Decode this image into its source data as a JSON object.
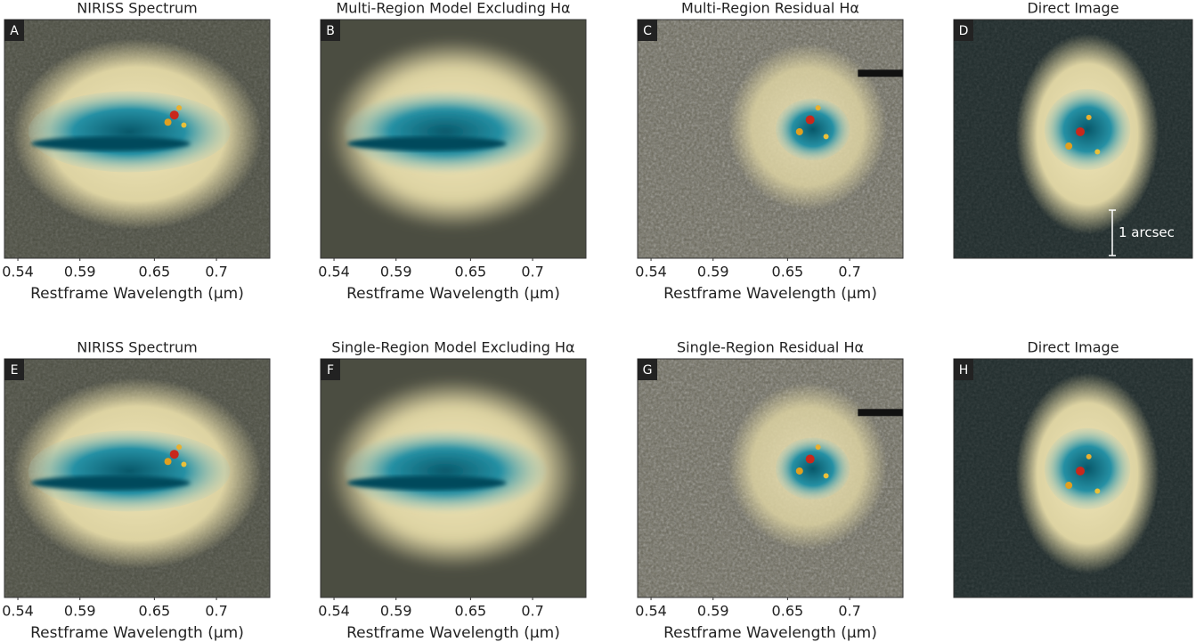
{
  "chart_data": [
    {
      "type": "spectrum",
      "title": "NIRISS Spectrum",
      "panel_label": "A",
      "xlabel": "Restframe Wavelength (μm)",
      "xlim": [
        0.5292,
        0.743
      ],
      "xticks": [
        0.54,
        0.59,
        0.65,
        0.7
      ]
    },
    {
      "type": "model",
      "title": "Multi-Region Model Excluding Hα",
      "panel_label": "B",
      "xlabel": "Restframe Wavelength (μm)",
      "xlim": [
        0.5292,
        0.743
      ],
      "xticks": [
        0.54,
        0.59,
        0.65,
        0.7
      ]
    },
    {
      "type": "residual",
      "title": "Multi-Region Residual Hα",
      "panel_label": "C",
      "xlabel": "Restframe Wavelength (μm)",
      "xlim": [
        0.5292,
        0.743
      ],
      "xticks": [
        0.54,
        0.59,
        0.65,
        0.7
      ]
    },
    {
      "type": "image",
      "title": "Direct Image",
      "panel_label": "D",
      "annotation": "1 arcsec"
    },
    {
      "type": "spectrum",
      "title": "NIRISS Spectrum",
      "panel_label": "E",
      "xlabel": "Restframe Wavelength (μm)",
      "xlim": [
        0.5292,
        0.743
      ],
      "xticks": [
        0.54,
        0.59,
        0.65,
        0.7
      ]
    },
    {
      "type": "smodel",
      "title": "Single-Region Model Excluding Hα",
      "panel_label": "F",
      "xlabel": "Restframe Wavelength (μm)",
      "xlim": [
        0.5292,
        0.743
      ],
      "xticks": [
        0.54,
        0.59,
        0.65,
        0.7
      ]
    },
    {
      "type": "residual",
      "title": "Single-Region Residual Hα",
      "panel_label": "G",
      "xlabel": "Restframe Wavelength (μm)",
      "xlim": [
        0.5292,
        0.743
      ],
      "xticks": [
        0.54,
        0.59,
        0.65,
        0.7
      ]
    },
    {
      "type": "image",
      "title": "Direct Image",
      "panel_label": "H"
    }
  ]
}
